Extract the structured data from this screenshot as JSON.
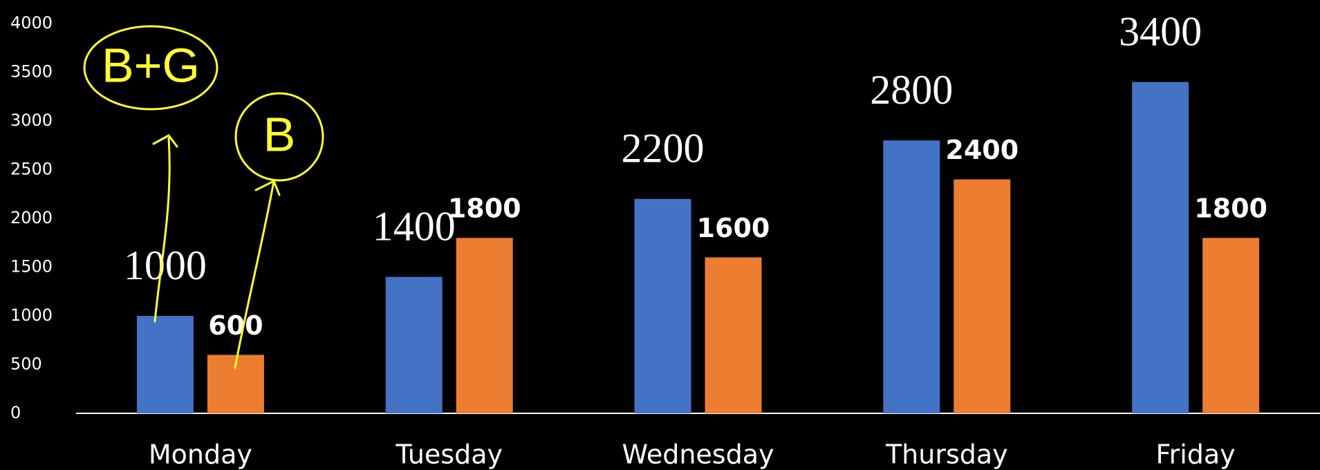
{
  "chart_data": {
    "type": "bar",
    "categories": [
      "Monday",
      "Tuesday",
      "Wednesday",
      "Thursday",
      "Friday"
    ],
    "series": [
      {
        "color": "#4472c4",
        "values": [
          1000,
          1400,
          2200,
          2800,
          3400
        ]
      },
      {
        "color": "#ed7d31",
        "values": [
          600,
          1800,
          1600,
          2400,
          1800
        ]
      }
    ],
    "ylim": [
      0,
      4000
    ],
    "yticks": [
      0,
      500,
      1000,
      1500,
      2000,
      2500,
      3000,
      3500,
      4000
    ],
    "grid": false,
    "annotations": [
      "B+G",
      "B"
    ]
  }
}
